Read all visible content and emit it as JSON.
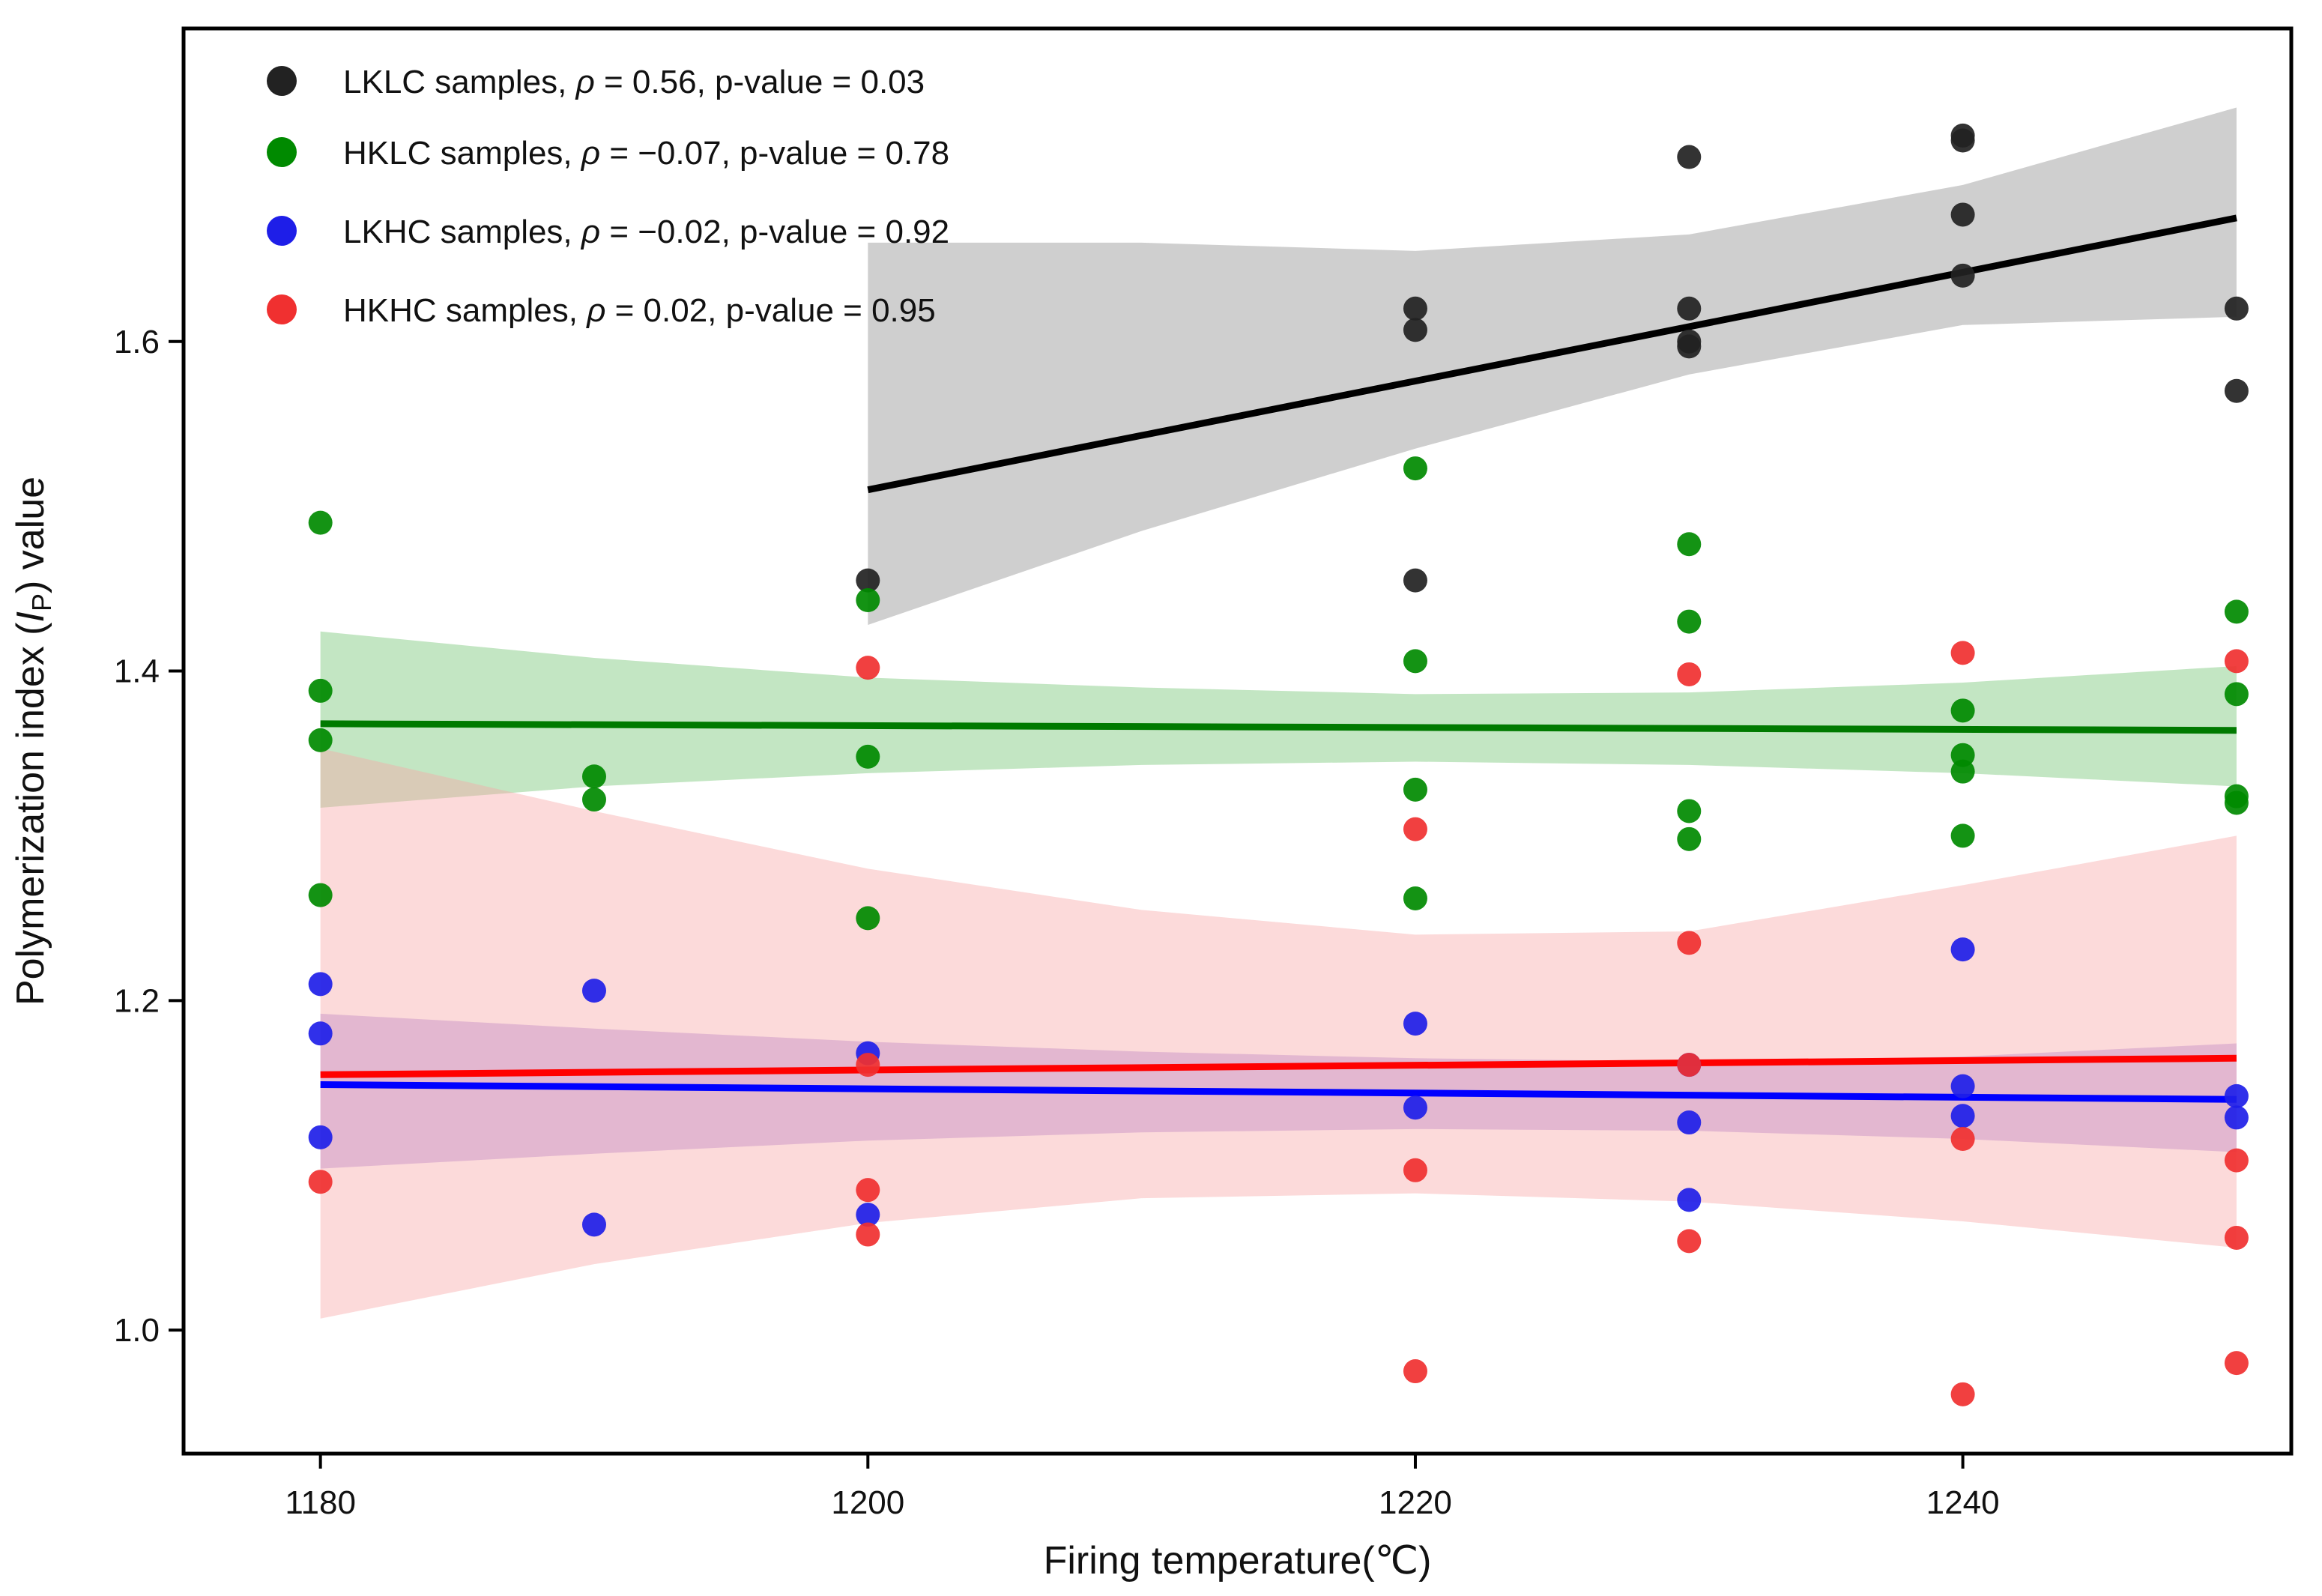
{
  "chart_data": {
    "type": "scatter",
    "title": "",
    "xlabel": "Firing temperature(℃)",
    "ylabel_parts": [
      "Polymerization index (",
      "I",
      "P",
      ") value"
    ],
    "xlim": [
      1175,
      1252
    ],
    "ylim": [
      0.925,
      1.79
    ],
    "xticks": [
      1180,
      1200,
      1220,
      1240
    ],
    "yticks": [
      1.0,
      1.2,
      1.4,
      1.6
    ],
    "xtick_labels": [
      "1180",
      "1200",
      "1220",
      "1240"
    ],
    "ytick_labels": [
      "1.0",
      "1.2",
      "1.4",
      "1.6"
    ],
    "grid": false,
    "legend_position": "top-left",
    "series": [
      {
        "name": "LKLC",
        "label_parts": [
          "LKLC samples,  ",
          "ρ",
          " = 0.56, p-value = 0.03"
        ],
        "color": "#222222",
        "band_color": "#8c8c8c",
        "fit_color": "#000000",
        "x": [
          1200,
          1220,
          1220,
          1220,
          1230,
          1230,
          1230,
          1230,
          1240,
          1240,
          1240,
          1240,
          1250,
          1250
        ],
        "y": [
          1.455,
          1.62,
          1.607,
          1.455,
          1.712,
          1.62,
          1.597,
          1.6,
          1.725,
          1.722,
          1.677,
          1.64,
          1.62,
          1.57
        ],
        "fit": {
          "x": [
            1200,
            1250
          ],
          "y": [
            1.51,
            1.675
          ]
        },
        "band": {
          "x": [
            1200,
            1210,
            1220,
            1230,
            1240,
            1250
          ],
          "lower": [
            1.428,
            1.485,
            1.535,
            1.58,
            1.61,
            1.615
          ],
          "upper": [
            1.66,
            1.66,
            1.655,
            1.665,
            1.695,
            1.742
          ]
        }
      },
      {
        "name": "HKLC",
        "label_parts": [
          "HKLC samples, ",
          "ρ",
          " = −0.07, p-value = 0.78"
        ],
        "color": "#008a00",
        "band_color": "#6fc46f",
        "fit_color": "#007a00",
        "x": [
          1180,
          1180,
          1180,
          1180,
          1190,
          1190,
          1200,
          1200,
          1200,
          1220,
          1220,
          1220,
          1220,
          1230,
          1230,
          1230,
          1230,
          1240,
          1240,
          1240,
          1240,
          1250,
          1250,
          1250,
          1250
        ],
        "y": [
          1.49,
          1.388,
          1.358,
          1.264,
          1.336,
          1.322,
          1.443,
          1.348,
          1.25,
          1.523,
          1.406,
          1.328,
          1.262,
          1.477,
          1.43,
          1.315,
          1.298,
          1.376,
          1.349,
          1.339,
          1.3,
          1.436,
          1.386,
          1.324,
          1.32
        ],
        "fit": {
          "x": [
            1180,
            1250
          ],
          "y": [
            1.368,
            1.364
          ]
        },
        "band": {
          "x": [
            1180,
            1190,
            1200,
            1210,
            1220,
            1230,
            1240,
            1250
          ],
          "lower": [
            1.317,
            1.33,
            1.338,
            1.343,
            1.345,
            1.343,
            1.338,
            1.33
          ],
          "upper": [
            1.424,
            1.408,
            1.396,
            1.39,
            1.386,
            1.387,
            1.393,
            1.403
          ]
        }
      },
      {
        "name": "LKHC",
        "label_parts": [
          "LKHC samples, ",
          "ρ",
          " = −0.02, p-value = 0.92"
        ],
        "color": "#1e1ee8",
        "band_color": "#9b6fd6",
        "fit_color": "#0000ff",
        "x": [
          1180,
          1180,
          1180,
          1190,
          1190,
          1200,
          1200,
          1220,
          1220,
          1230,
          1230,
          1230,
          1240,
          1240,
          1240,
          1250,
          1250
        ],
        "y": [
          1.21,
          1.18,
          1.117,
          1.206,
          1.064,
          1.168,
          1.07,
          1.186,
          1.135,
          1.161,
          1.126,
          1.079,
          1.231,
          1.148,
          1.13,
          1.142,
          1.129
        ],
        "fit": {
          "x": [
            1180,
            1250
          ],
          "y": [
            1.149,
            1.14
          ]
        },
        "band": {
          "x": [
            1180,
            1190,
            1200,
            1210,
            1220,
            1230,
            1240,
            1250
          ],
          "lower": [
            1.098,
            1.107,
            1.115,
            1.12,
            1.122,
            1.121,
            1.116,
            1.108
          ],
          "upper": [
            1.192,
            1.183,
            1.175,
            1.169,
            1.165,
            1.163,
            1.166,
            1.174
          ]
        }
      },
      {
        "name": "HKHC",
        "label_parts": [
          "HKHC samples, ",
          "ρ",
          " = 0.02, p-value = 0.95"
        ],
        "color": "#f03030",
        "band_color": "#f8a8a8",
        "fit_color": "#ff0000",
        "x": [
          1180,
          1200,
          1200,
          1200,
          1200,
          1220,
          1220,
          1220,
          1230,
          1230,
          1230,
          1230,
          1240,
          1240,
          1240,
          1250,
          1250,
          1250,
          1250
        ],
        "y": [
          1.09,
          1.402,
          1.161,
          1.085,
          1.058,
          1.304,
          1.097,
          0.975,
          1.398,
          1.235,
          1.161,
          1.054,
          1.411,
          1.116,
          0.961,
          1.406,
          1.103,
          1.056,
          0.98
        ],
        "fit": {
          "x": [
            1180,
            1250
          ],
          "y": [
            1.155,
            1.165
          ]
        },
        "band": {
          "x": [
            1180,
            1190,
            1200,
            1210,
            1220,
            1230,
            1240,
            1250
          ],
          "lower": [
            1.007,
            1.04,
            1.065,
            1.08,
            1.083,
            1.078,
            1.066,
            1.05
          ],
          "upper": [
            1.353,
            1.315,
            1.28,
            1.255,
            1.24,
            1.242,
            1.27,
            1.3
          ]
        }
      }
    ]
  }
}
